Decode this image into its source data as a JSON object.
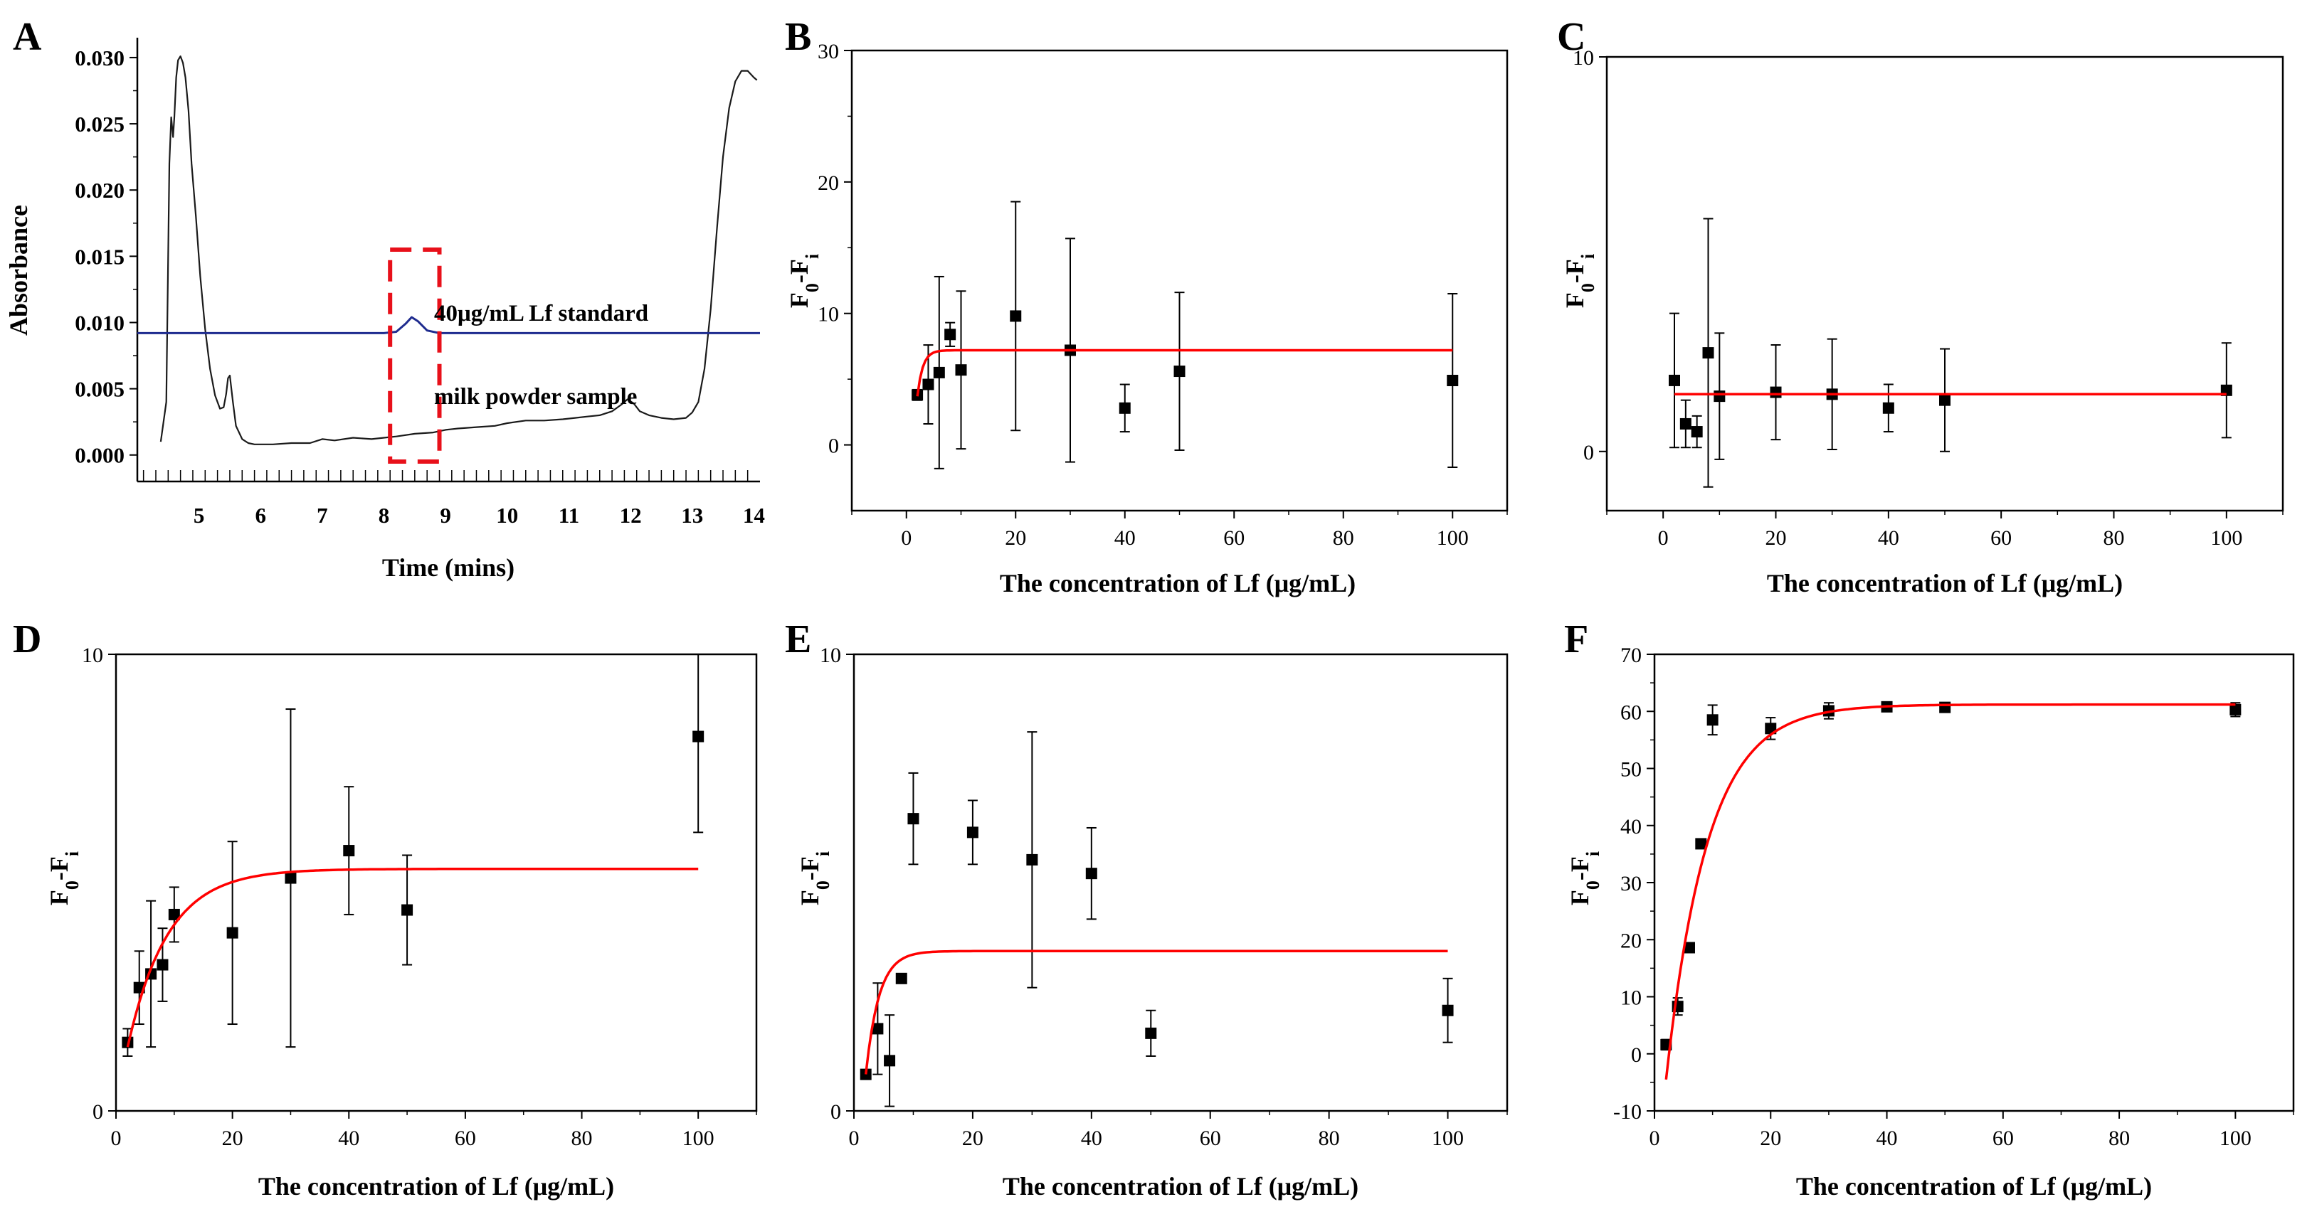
{
  "figure": {
    "background": "#ffffff"
  },
  "chart_data": [
    {
      "panel": "A",
      "type": "line",
      "xlabel": "Time (mins)",
      "ylabel": "Absorbance",
      "xlim": [
        4.0,
        14.1
      ],
      "ylim": [
        -0.002,
        0.0315
      ],
      "xticks": [
        5,
        6,
        7,
        8,
        9,
        10,
        11,
        12,
        13,
        14
      ],
      "xtick_labels": [
        "5",
        "6",
        "7",
        "8",
        "9",
        "10",
        "11",
        "12",
        "13",
        "14"
      ],
      "yticks": [
        0.0,
        0.005,
        0.01,
        0.015,
        0.02,
        0.025,
        0.03
      ],
      "ytick_labels": [
        "0.000",
        "0.005",
        "0.010",
        "0.015",
        "0.020",
        "0.025",
        "0.030"
      ],
      "highlight_box": {
        "x0": 8.1,
        "x1": 8.9,
        "y0": -0.0005,
        "y1": 0.0155,
        "color": "#e8101a"
      },
      "annotations": [
        "40μg/mL Lf standard",
        "milk powder sample"
      ],
      "series": [
        {
          "name": "milk powder sample",
          "color": "#1a1a1a",
          "x": [
            4.38,
            4.47,
            4.52,
            4.55,
            4.58,
            4.6,
            4.63,
            4.66,
            4.7,
            4.74,
            4.78,
            4.83,
            4.88,
            4.95,
            5.02,
            5.1,
            5.18,
            5.26,
            5.34,
            5.4,
            5.44,
            5.47,
            5.5,
            5.52,
            5.55,
            5.6,
            5.7,
            5.8,
            5.9,
            6.0,
            6.2,
            6.5,
            6.8,
            7.0,
            7.2,
            7.5,
            7.8,
            8.0,
            8.2,
            8.5,
            8.8,
            9.0,
            9.2,
            9.5,
            9.8,
            10.0,
            10.3,
            10.6,
            10.9,
            11.1,
            11.3,
            11.5,
            11.7,
            11.85,
            11.95,
            12.05,
            12.15,
            12.3,
            12.5,
            12.7,
            12.9,
            13.0,
            13.1,
            13.2,
            13.3,
            13.4,
            13.5,
            13.6,
            13.7,
            13.8,
            13.9,
            14.0,
            14.05
          ],
          "y": [
            0.001,
            0.004,
            0.022,
            0.0255,
            0.024,
            0.0255,
            0.0285,
            0.0298,
            0.0301,
            0.0296,
            0.0285,
            0.026,
            0.022,
            0.018,
            0.0135,
            0.0095,
            0.0065,
            0.0045,
            0.0035,
            0.0036,
            0.0046,
            0.0058,
            0.006,
            0.0052,
            0.004,
            0.0022,
            0.0012,
            0.0009,
            0.0008,
            0.0008,
            0.0008,
            0.0009,
            0.0009,
            0.0012,
            0.0011,
            0.0013,
            0.0012,
            0.0013,
            0.0014,
            0.0016,
            0.0017,
            0.0019,
            0.002,
            0.0021,
            0.0022,
            0.0024,
            0.0026,
            0.0026,
            0.0027,
            0.0028,
            0.0029,
            0.003,
            0.0033,
            0.0038,
            0.0042,
            0.0039,
            0.0033,
            0.003,
            0.0028,
            0.0027,
            0.0028,
            0.0032,
            0.004,
            0.0065,
            0.011,
            0.017,
            0.0225,
            0.0262,
            0.0282,
            0.029,
            0.029,
            0.0285,
            0.0283
          ]
        },
        {
          "name": "40μg/mL Lf standard",
          "color": "#1f2c8f",
          "x": [
            4.0,
            8.0,
            8.2,
            8.35,
            8.45,
            8.55,
            8.7,
            8.9,
            14.1
          ],
          "y": [
            0.0092,
            0.0092,
            0.0093,
            0.0099,
            0.0104,
            0.0101,
            0.0094,
            0.0092,
            0.0092
          ]
        }
      ]
    },
    {
      "panel": "B",
      "type": "scatter",
      "xlabel": "The concentration of Lf (μg/mL)",
      "ylabel": "F0-Fi",
      "xlim": [
        -10,
        110
      ],
      "ylim": [
        -5,
        30
      ],
      "xticks": [
        0,
        20,
        40,
        60,
        80,
        100
      ],
      "xtick_labels": [
        "0",
        "20",
        "40",
        "60",
        "80",
        "100"
      ],
      "yticks": [
        0,
        10,
        20,
        30
      ],
      "ytick_labels": [
        "0",
        "10",
        "20",
        "30"
      ],
      "points": {
        "x": [
          2,
          4,
          6,
          8,
          10,
          20,
          30,
          40,
          50,
          100
        ],
        "y": [
          3.8,
          4.6,
          5.5,
          8.4,
          5.7,
          9.8,
          7.2,
          2.8,
          5.6,
          4.9
        ],
        "err": [
          0.4,
          3.0,
          7.3,
          0.9,
          6.0,
          8.7,
          8.5,
          1.8,
          6.0,
          6.6
        ]
      },
      "fit": {
        "color": "#ff0000",
        "plateau": 7.2,
        "start_value": 3.7,
        "rate": 1.0,
        "x_start": 2,
        "x_end": 100
      }
    },
    {
      "panel": "C",
      "type": "scatter",
      "xlabel": "The concentration of Lf (μg/mL)",
      "ylabel": "F0-Fi",
      "xlim": [
        -10,
        110
      ],
      "ylim": [
        -1.5,
        10
      ],
      "xticks": [
        0,
        20,
        40,
        60,
        80,
        100
      ],
      "xtick_labels": [
        "0",
        "20",
        "40",
        "60",
        "80",
        "100"
      ],
      "yticks": [
        0,
        10
      ],
      "ytick_labels": [
        "0",
        "10"
      ],
      "points": {
        "x": [
          2,
          4,
          6,
          8,
          10,
          20,
          30,
          40,
          50,
          100
        ],
        "y": [
          1.8,
          0.7,
          0.5,
          2.5,
          1.4,
          1.5,
          1.45,
          1.1,
          1.3,
          1.55
        ],
        "err": [
          1.7,
          0.6,
          0.4,
          3.4,
          1.6,
          1.2,
          1.4,
          0.6,
          1.3,
          1.2
        ]
      },
      "fit": {
        "color": "#ff0000",
        "plateau": 1.45,
        "start_value": 1.45,
        "rate": 1.0,
        "x_start": 2,
        "x_end": 100
      }
    },
    {
      "panel": "D",
      "type": "scatter",
      "xlabel": "The concentration of Lf (μg/mL)",
      "ylabel": "F0-Fi",
      "xlim": [
        0,
        110
      ],
      "ylim": [
        0,
        10
      ],
      "xticks": [
        0,
        20,
        40,
        60,
        80,
        100
      ],
      "xtick_labels": [
        "0",
        "20",
        "40",
        "60",
        "80",
        "100"
      ],
      "yticks": [
        0,
        10
      ],
      "ytick_labels": [
        "0",
        "10"
      ],
      "points": {
        "x": [
          2,
          4,
          6,
          8,
          10,
          20,
          30,
          40,
          50,
          100
        ],
        "y": [
          1.5,
          2.7,
          3.0,
          3.2,
          4.3,
          3.9,
          5.1,
          5.7,
          4.4,
          8.2
        ],
        "err": [
          0.3,
          0.8,
          1.6,
          0.8,
          0.6,
          2.0,
          3.7,
          1.4,
          1.2,
          2.1
        ]
      },
      "fit": {
        "color": "#ff0000",
        "plateau": 5.3,
        "start_value": 1.4,
        "rate": 0.145,
        "x_start": 2,
        "x_end": 100
      }
    },
    {
      "panel": "E",
      "type": "scatter",
      "xlabel": "The concentration of Lf (μg/mL)",
      "ylabel": "F0-Fi",
      "xlim": [
        0,
        110
      ],
      "ylim": [
        0,
        10
      ],
      "xticks": [
        0,
        20,
        40,
        60,
        80,
        100
      ],
      "xtick_labels": [
        "0",
        "20",
        "40",
        "60",
        "80",
        "100"
      ],
      "yticks": [
        0,
        10
      ],
      "ytick_labels": [
        "0",
        "10"
      ],
      "points": {
        "x": [
          2,
          4,
          6,
          8,
          10,
          20,
          30,
          40,
          50,
          100
        ],
        "y": [
          0.8,
          1.8,
          1.1,
          2.9,
          6.4,
          6.1,
          5.5,
          5.2,
          1.7,
          2.2
        ],
        "err": [
          0.1,
          1.0,
          1.0,
          0.1,
          1.0,
          0.7,
          2.8,
          1.0,
          0.5,
          0.7
        ]
      },
      "fit": {
        "color": "#ff0000",
        "plateau": 3.5,
        "start_value": 0.8,
        "rate": 0.45,
        "x_start": 2,
        "x_end": 100
      }
    },
    {
      "panel": "F",
      "type": "scatter",
      "xlabel": "The concentration of Lf (μg/mL)",
      "ylabel": "F0-Fi",
      "xlim": [
        0,
        110
      ],
      "ylim": [
        -10,
        70
      ],
      "xticks": [
        0,
        20,
        40,
        60,
        80,
        100
      ],
      "xtick_labels": [
        "0",
        "20",
        "40",
        "60",
        "80",
        "100"
      ],
      "yticks": [
        -10,
        0,
        10,
        20,
        30,
        40,
        50,
        60,
        70
      ],
      "ytick_labels": [
        "-10",
        "0",
        "10",
        "20",
        "30",
        "40",
        "50",
        "60",
        "70"
      ],
      "points": {
        "x": [
          2,
          4,
          6,
          8,
          10,
          20,
          30,
          40,
          50,
          100
        ],
        "y": [
          1.6,
          8.3,
          18.6,
          36.8,
          58.5,
          57.0,
          60.1,
          60.8,
          60.7,
          60.3
        ],
        "err": [
          0.9,
          1.5,
          0.5,
          0.6,
          2.6,
          1.9,
          1.4,
          0.4,
          0.5,
          1.2
        ]
      },
      "fit": {
        "color": "#ff0000",
        "plateau": 61.2,
        "start_value": -4.5,
        "rate": 0.14,
        "x_start": 2,
        "x_end": 100
      }
    }
  ]
}
